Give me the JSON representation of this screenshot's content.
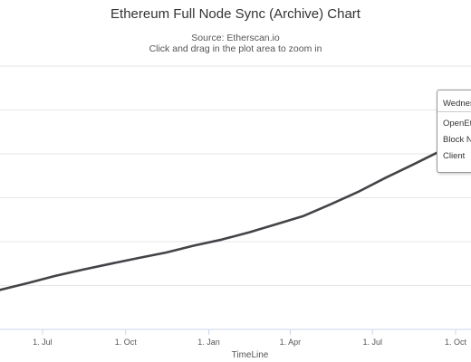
{
  "chart_data": {
    "type": "line",
    "title": "Ethereum Full Node Sync (Archive) Chart",
    "subtitle": [
      "Source: Etherscan.io",
      "Click and drag in the plot area to zoom in"
    ],
    "xlabel": "TimeLine",
    "ylabel": "",
    "x_tick_labels": [
      "1. Jul",
      "1. Oct",
      "1. Jan",
      "1. Apr",
      "1. Jul",
      "1. Oct"
    ],
    "x_ticks": [
      "2018-07-01",
      "2018-10-01",
      "2019-01-01",
      "2019-04-01",
      "2019-07-01",
      "2019-10-01"
    ],
    "xlim": [
      "2018-05-15",
      "2019-10-18"
    ],
    "y_grid_lines": 7,
    "grid": true,
    "series": [
      {
        "color": "#434348",
        "x": [
          "2018-05-15",
          "2018-06-15",
          "2018-07-15",
          "2018-08-15",
          "2018-09-15",
          "2018-10-15",
          "2018-11-15",
          "2018-12-15",
          "2019-01-15",
          "2019-02-15",
          "2019-03-15",
          "2019-04-15",
          "2019-05-15",
          "2019-06-15",
          "2019-07-15",
          "2019-08-15",
          "2019-09-15",
          "2019-10-18"
        ],
        "y": [
          0.15,
          0.176,
          0.203,
          0.227,
          0.25,
          0.271,
          0.292,
          0.318,
          0.341,
          0.369,
          0.398,
          0.43,
          0.474,
          0.522,
          0.575,
          0.626,
          0.679,
          0.726
        ]
      }
    ]
  },
  "tooltip": {
    "date": "Wednesday",
    "rows": [
      "OpenEthereum",
      "Block Number",
      "Client"
    ]
  }
}
